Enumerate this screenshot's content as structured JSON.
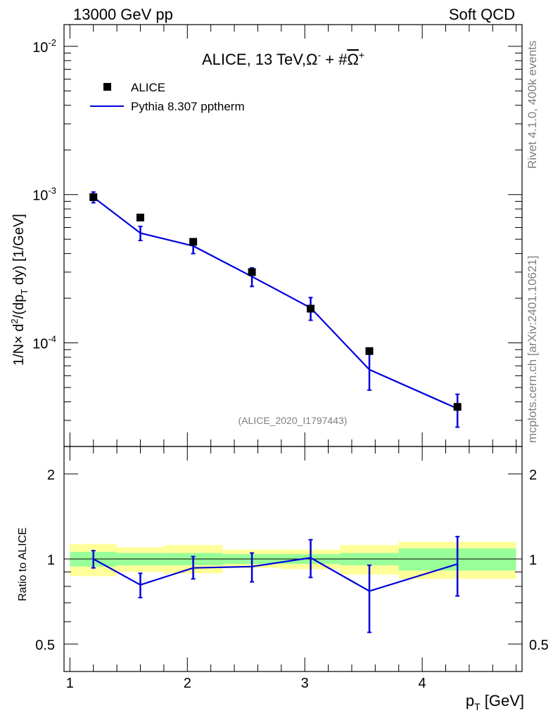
{
  "header": {
    "left": "13000 GeV pp",
    "right": "Soft QCD"
  },
  "side": {
    "rivet": "Rivet 4.1.0,  400k events",
    "mcplots": "mcplots.cern.ch [arXiv:2401.10621]"
  },
  "colors": {
    "mc_line": "#0000dd",
    "band_inner": "#99ff99",
    "band_outer": "#ffff99",
    "data_marker": "#000000"
  },
  "chart_data": [
    {
      "type": "scatter",
      "panel": "main",
      "title": "ALICE, 13 TeV,",
      "title_formula": {
        "omega": "Ω",
        "minus": "-",
        "plus_sign": " + #",
        "plus": "+"
      },
      "ylabel": {
        "prefix": "1/N",
        "times": "×",
        "d": " d",
        "sq": "2",
        "mid": "/(dp",
        "sub": "T",
        "end": " dy) [1/GeV]"
      },
      "yscale": "log",
      "ylim": [
        2e-05,
        0.014
      ],
      "xlim": [
        0.95,
        4.85
      ],
      "yticks": [
        {
          "value": 0.01,
          "base": "10",
          "exp": "-2"
        },
        {
          "value": 0.001,
          "base": "10",
          "exp": "-3"
        },
        {
          "value": 0.0001,
          "base": "10",
          "exp": "-4"
        }
      ],
      "legend": {
        "position": "top-left",
        "entries": [
          "ALICE",
          "Pythia 8.307 pptherm"
        ]
      },
      "analysis_id": "(ALICE_2020_I1797443)",
      "series": [
        {
          "name": "ALICE",
          "style": "markers",
          "x": [
            1.2,
            1.6,
            2.05,
            2.55,
            3.05,
            3.55,
            4.3
          ],
          "y": [
            0.00096,
            0.0007,
            0.00048,
            0.0003,
            0.00017,
            8.8e-05,
            3.7e-05
          ]
        },
        {
          "name": "Pythia 8.307 pptherm",
          "style": "line",
          "x": [
            1.2,
            1.6,
            2.05,
            2.55,
            3.05,
            3.55,
            4.3
          ],
          "y": [
            0.00096,
            0.00055,
            0.00045,
            0.00028,
            0.000172,
            6.6e-05,
            3.6e-05
          ],
          "yerr_low": [
            8e-05,
            6e-05,
            5e-05,
            4e-05,
            3e-05,
            1.8e-05,
            9e-06
          ],
          "yerr_high": [
            8e-05,
            6e-05,
            5e-05,
            4e-05,
            3e-05,
            1.8e-05,
            9e-06
          ]
        }
      ]
    },
    {
      "type": "line",
      "panel": "ratio",
      "ylabel": "Ratio to ALICE",
      "xlabel": "p",
      "xlabel_sub": "T",
      "xlabel_unit": " [GeV]",
      "yscale": "log",
      "ylim": [
        0.4,
        2.5
      ],
      "xlim": [
        0.95,
        4.85
      ],
      "xticks": [
        1,
        2,
        3,
        4
      ],
      "xtick_labels": [
        "1",
        "2",
        "3",
        "4"
      ],
      "yticks": [
        0.5,
        1,
        2
      ],
      "ytick_labels": [
        "0.5",
        "1",
        "2"
      ],
      "bands": {
        "edges": [
          1.0,
          1.4,
          1.8,
          2.3,
          2.8,
          3.3,
          3.8,
          4.8
        ],
        "inner_low": [
          0.94,
          0.95,
          0.95,
          0.96,
          0.96,
          0.95,
          0.91
        ],
        "inner_high": [
          1.06,
          1.05,
          1.05,
          1.04,
          1.04,
          1.05,
          1.09
        ],
        "outer_low": [
          0.87,
          0.9,
          0.89,
          0.93,
          0.92,
          0.88,
          0.85
        ],
        "outer_high": [
          1.13,
          1.1,
          1.12,
          1.08,
          1.08,
          1.12,
          1.15
        ]
      },
      "series": [
        {
          "name": "Pythia 8.307 pptherm",
          "x": [
            1.2,
            1.6,
            2.05,
            2.55,
            3.05,
            3.55,
            4.3
          ],
          "y": [
            1.0,
            0.81,
            0.93,
            0.94,
            1.01,
            0.77,
            0.96
          ],
          "yerr_low": [
            0.07,
            0.08,
            0.08,
            0.11,
            0.15,
            0.22,
            0.22
          ],
          "yerr_high": [
            0.07,
            0.08,
            0.09,
            0.11,
            0.16,
            0.18,
            0.24
          ]
        }
      ]
    }
  ]
}
